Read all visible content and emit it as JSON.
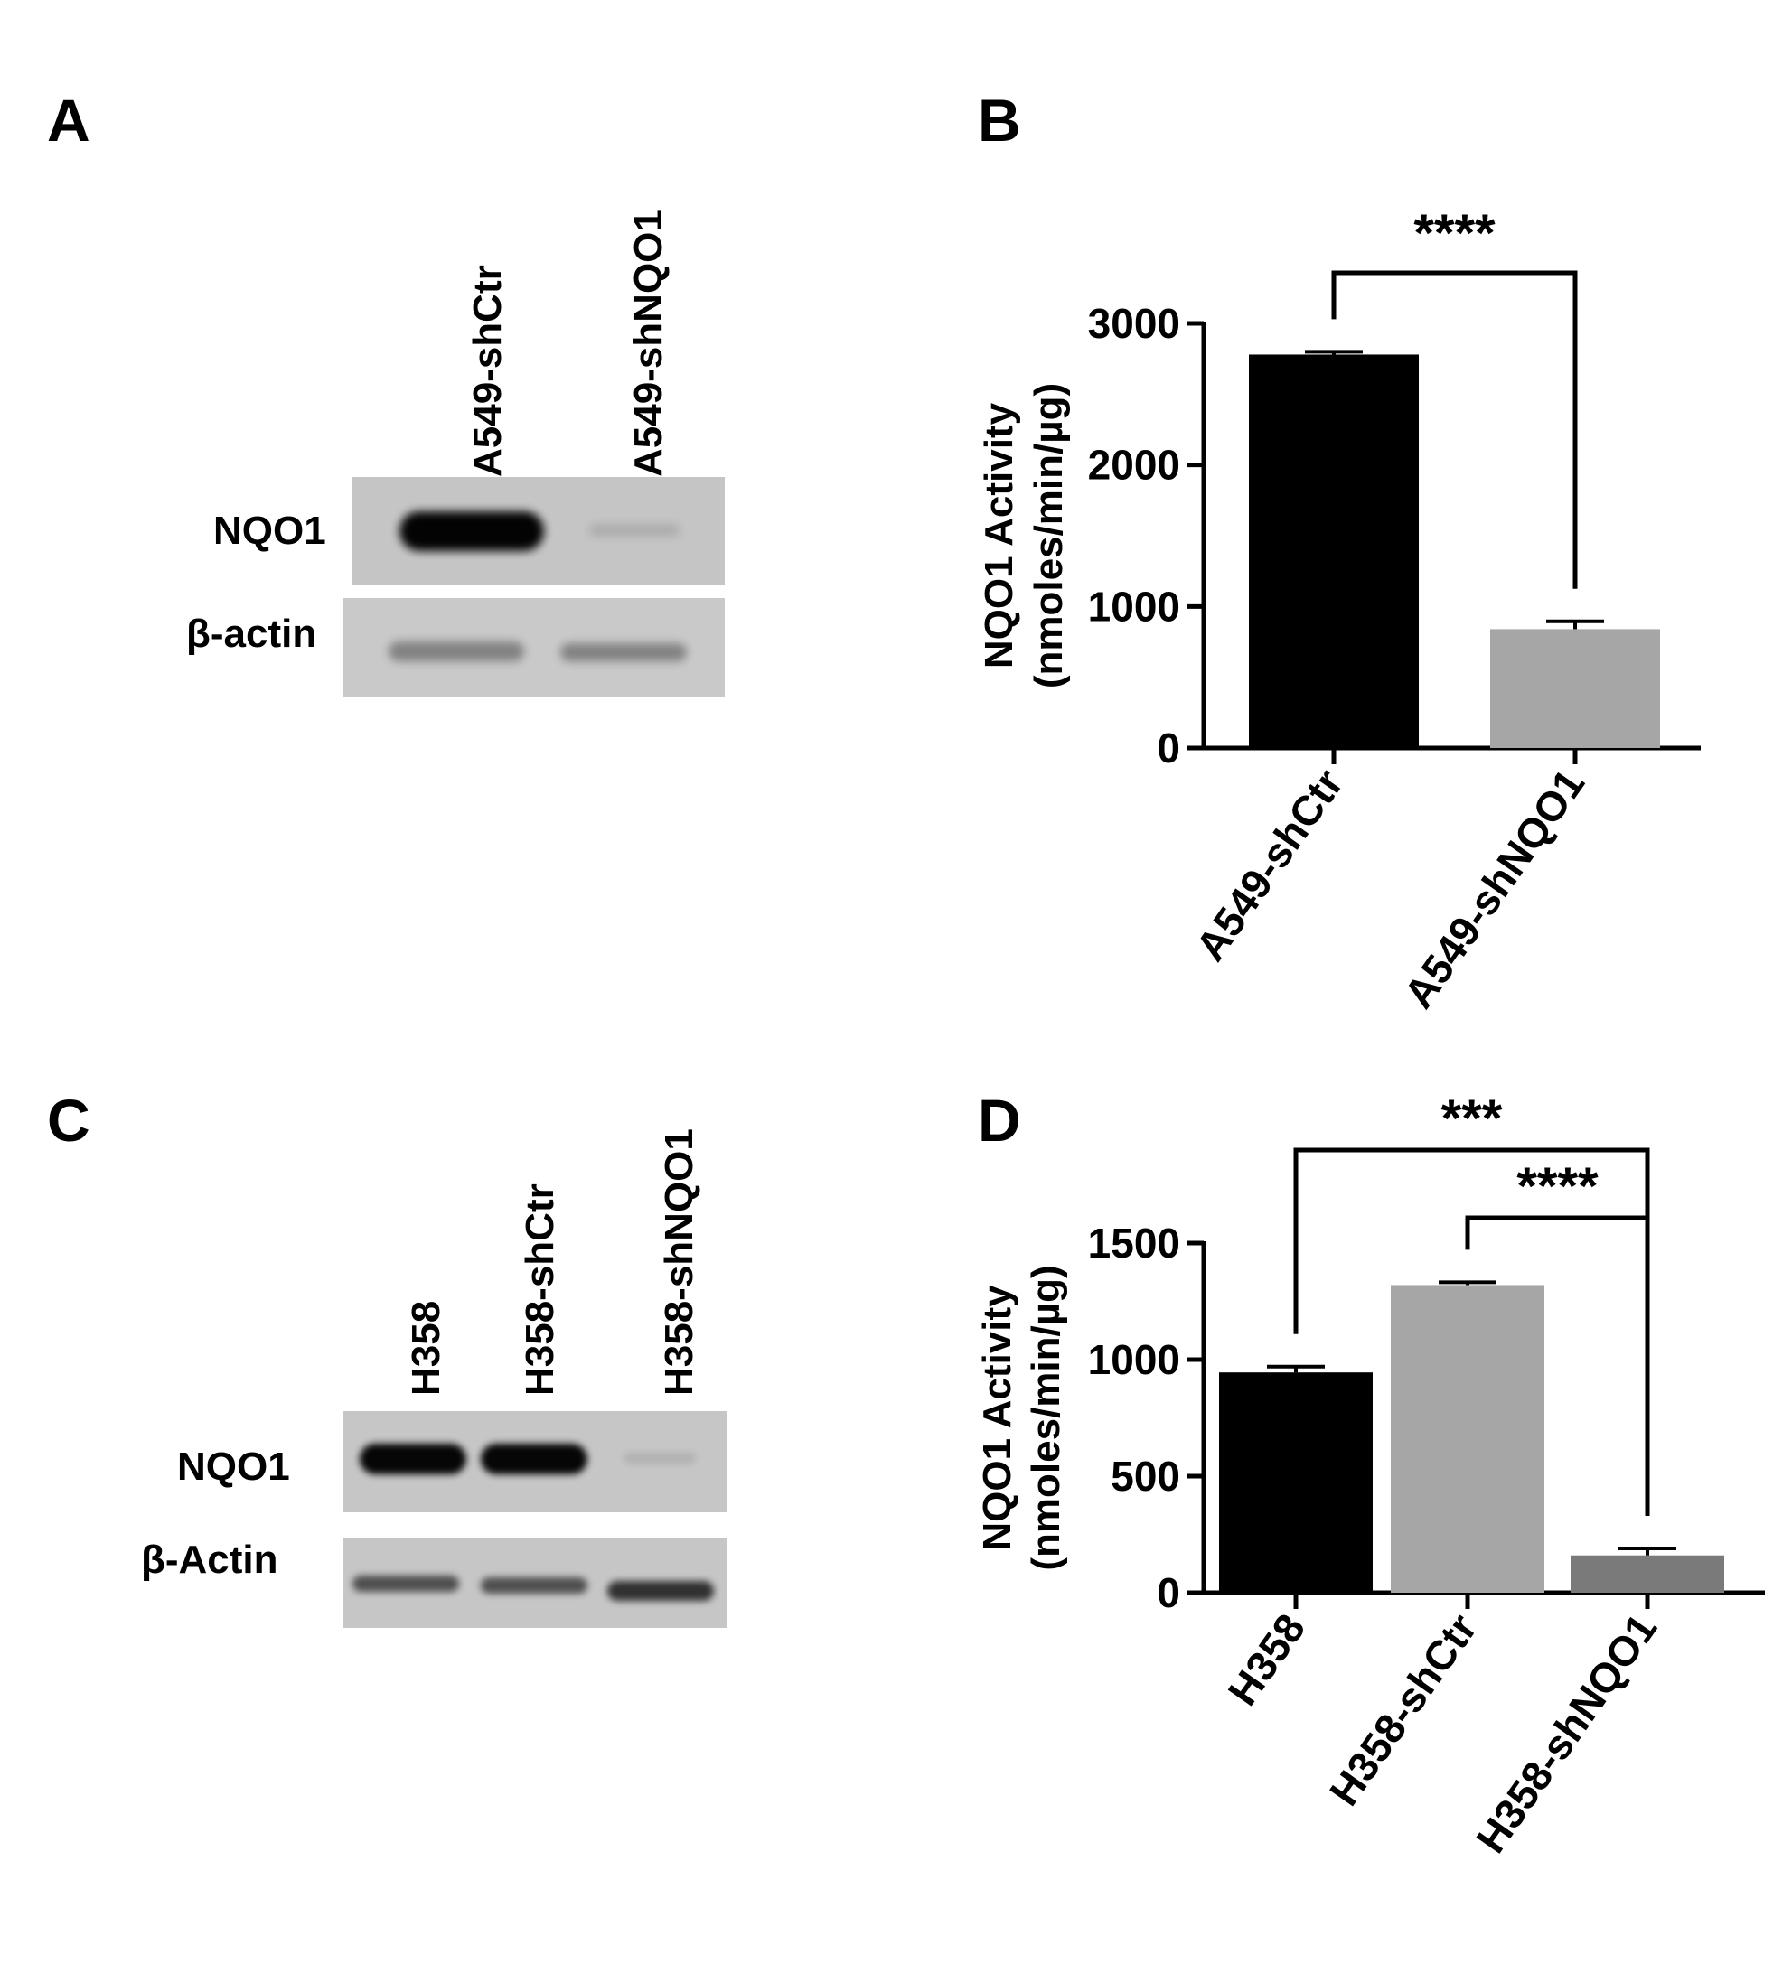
{
  "panels": {
    "a": {
      "letter": "A",
      "lanes": [
        "A549-shCtr",
        "A549-shNQO1"
      ],
      "rows": [
        "NQO1",
        "β-actin"
      ],
      "band_intensity": {
        "NQO1": [
          0.98,
          0.12
        ],
        "β-actin": [
          0.35,
          0.35
        ]
      }
    },
    "b": {
      "letter": "B"
    },
    "c": {
      "letter": "C",
      "lanes": [
        "H358",
        "H358-shCtr",
        "H358-shNQO1"
      ],
      "rows": [
        "NQO1",
        "β-Actin"
      ],
      "band_intensity": {
        "NQO1": [
          0.97,
          0.97,
          0.1
        ],
        "β-Actin": [
          0.6,
          0.6,
          0.75
        ]
      }
    },
    "d": {
      "letter": "D"
    }
  },
  "chart_data": [
    {
      "panel": "B",
      "type": "bar",
      "categories": [
        "A549-shCtr",
        "A549-shNQO1"
      ],
      "values": [
        2780,
        840
      ],
      "errors": [
        20,
        55
      ],
      "colors": [
        "#000000",
        "#a6a6a6"
      ],
      "ylabel": "NQO1 Activity",
      "ylabel2": "(nmoles/min/µg)",
      "ylim": [
        0,
        3000
      ],
      "yticks": [
        "0",
        "1000",
        "2000",
        "3000"
      ],
      "ytick_values": [
        0,
        1000,
        2000,
        3000
      ],
      "significance": [
        {
          "from": 0,
          "to": 1,
          "label": "****"
        }
      ]
    },
    {
      "panel": "D",
      "type": "bar",
      "categories": [
        "H358",
        "H358-shCtr",
        "H358-shNQO1"
      ],
      "values": [
        945,
        1320,
        160
      ],
      "errors": [
        25,
        12,
        30
      ],
      "colors": [
        "#000000",
        "#a6a6a6",
        "#7a7a7a"
      ],
      "ylabel": "NQO1 Activity",
      "ylabel2": "(nmoles/min/µg)",
      "ylim": [
        0,
        1500
      ],
      "yticks": [
        "0",
        "500",
        "1000",
        "1500"
      ],
      "ytick_values": [
        0,
        500,
        1000,
        1500
      ],
      "significance": [
        {
          "from": 0,
          "to": 2,
          "label": "***"
        },
        {
          "from": 1,
          "to": 2,
          "label": "****"
        }
      ]
    }
  ]
}
